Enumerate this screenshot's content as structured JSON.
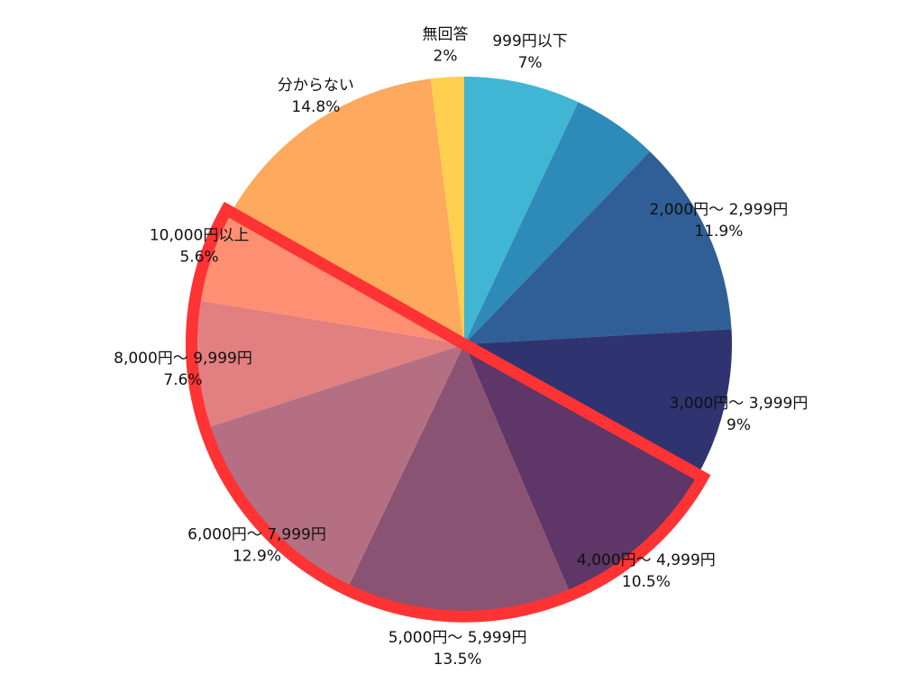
{
  "chart_data": {
    "type": "pie",
    "start_angle_deg": 0,
    "direction": "clockwise",
    "slices": [
      {
        "label": "999円以下",
        "value": 7,
        "value_text": "7%",
        "color": "#41b6d4"
      },
      {
        "label": "",
        "value": 5.2,
        "value_text": "",
        "color": "#2e8ab9"
      },
      {
        "label": "2,000円～ 2,999円",
        "value": 11.9,
        "value_text": "11.9%",
        "color": "#2f5f96"
      },
      {
        "label": "3,000円～ 3,999円",
        "value": 9,
        "value_text": "9%",
        "color": "#2f3470"
      },
      {
        "label": "4,000円～ 4,999円",
        "value": 10.5,
        "value_text": "10.5%",
        "color": "#5e3667"
      },
      {
        "label": "5,000円～ 5,999円",
        "value": 13.5,
        "value_text": "13.5%",
        "color": "#8a5374"
      },
      {
        "label": "6,000円～ 7,999円",
        "value": 12.9,
        "value_text": "12.9%",
        "color": "#b56f83"
      },
      {
        "label": "8,000円～ 9,999円",
        "value": 7.6,
        "value_text": "7.6%",
        "color": "#e17f81"
      },
      {
        "label": "10,000円以上",
        "value": 5.6,
        "value_text": "5.6%",
        "color": "#ff8f73"
      },
      {
        "label": "分からない",
        "value": 14.8,
        "value_text": "14.8%",
        "color": "#fea95d"
      },
      {
        "label": "無回答",
        "value": 2,
        "value_text": "2%",
        "color": "#ffd04f"
      }
    ],
    "highlight": {
      "from_slice": "4,000円～ 4,999円",
      "to_slice": "10,000円以上",
      "color": "#ff3333"
    }
  }
}
